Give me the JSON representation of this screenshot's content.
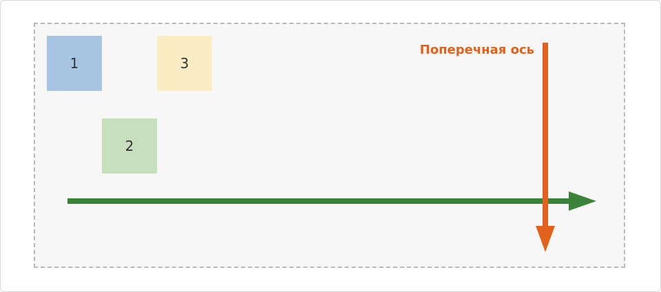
{
  "items": [
    {
      "label": "1",
      "color": "#a8c5e4"
    },
    {
      "label": "2",
      "color": "#c8dfbe"
    },
    {
      "label": "3",
      "color": "#faedc3"
    }
  ],
  "cross_axis": {
    "label": "Поперечная ось",
    "color": "#e2611c"
  },
  "main_axis": {
    "color": "#3a843a"
  }
}
